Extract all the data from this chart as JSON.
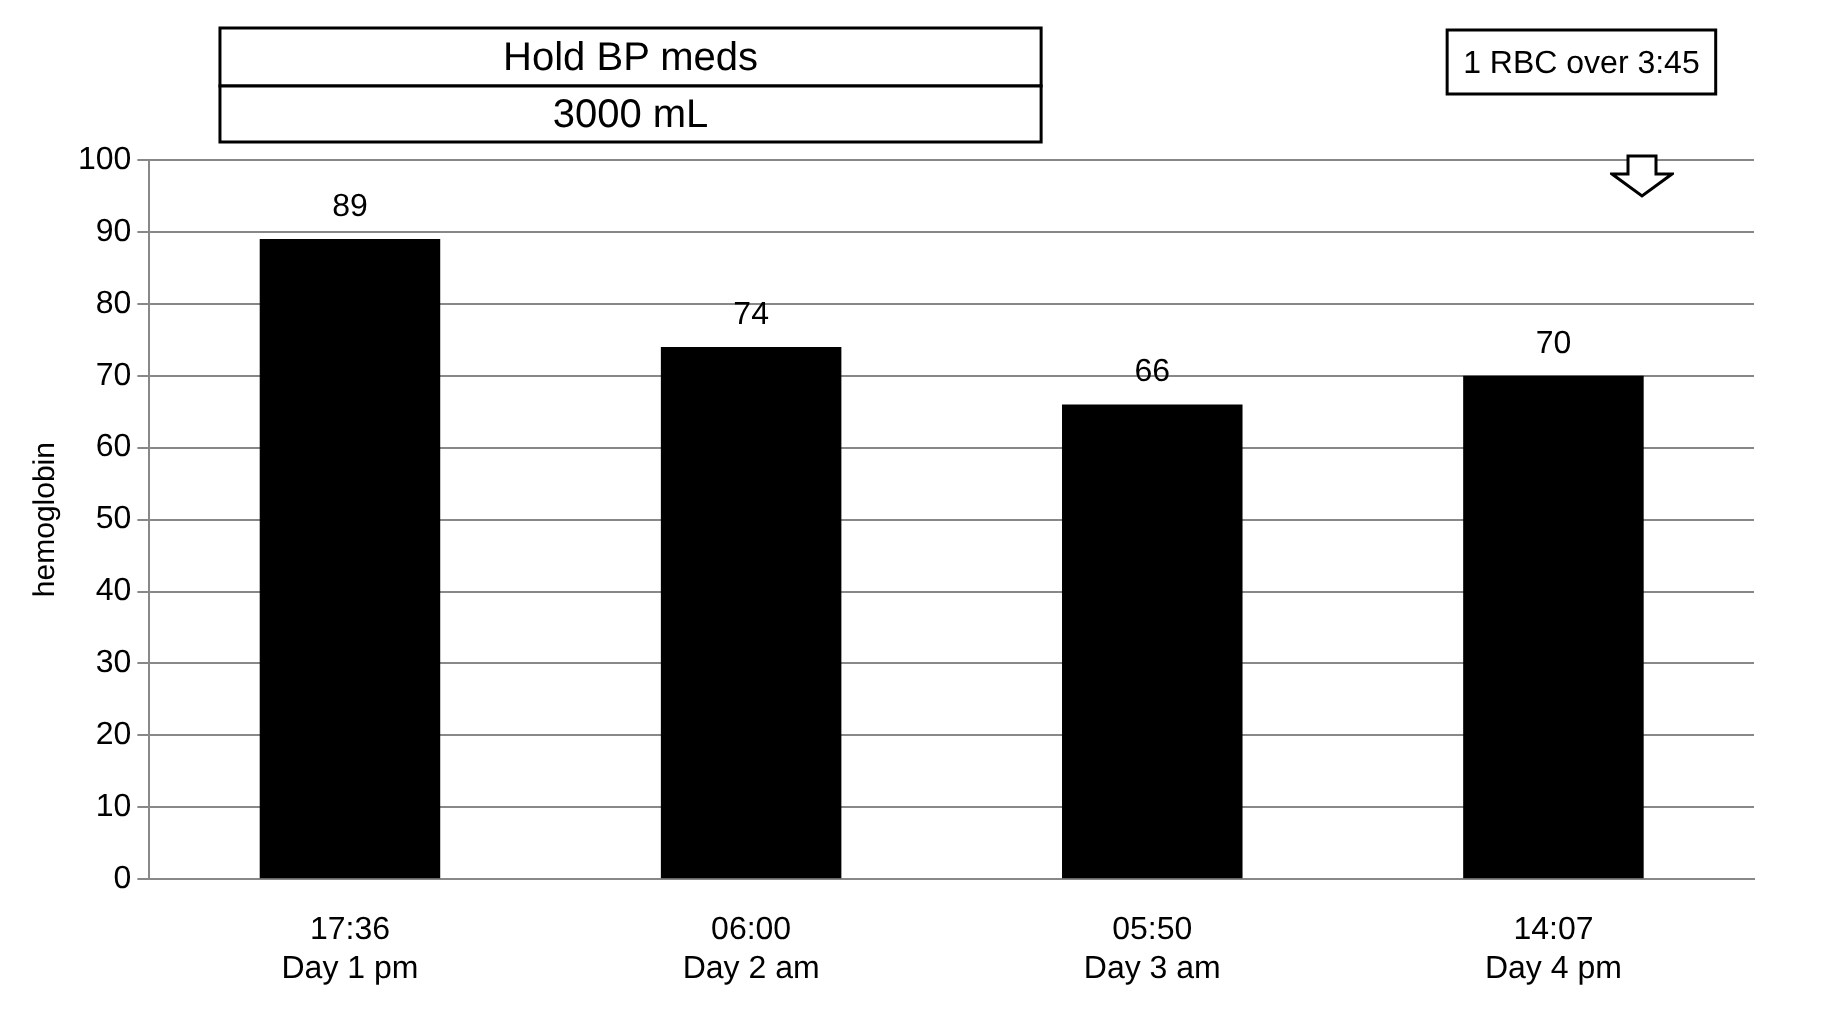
{
  "chart_data": {
    "type": "bar",
    "ylabel": "hemoglobin",
    "categories": [
      "17:36\nDay 1 pm",
      "06:00\nDay 2 am",
      "05:50\nDay 3 am",
      "14:07\nDay 4 pm"
    ],
    "values": [
      89,
      74,
      66,
      70
    ],
    "color": "#000000",
    "ylim": [
      0,
      100
    ],
    "yticks": [
      0,
      10,
      20,
      30,
      40,
      50,
      60,
      70,
      80,
      90,
      100
    ],
    "grid": "y",
    "data_labels": true,
    "legend": false,
    "annotations": [
      "Hold BP meds",
      "3000 mL",
      "1 RBC over 3:45"
    ]
  }
}
